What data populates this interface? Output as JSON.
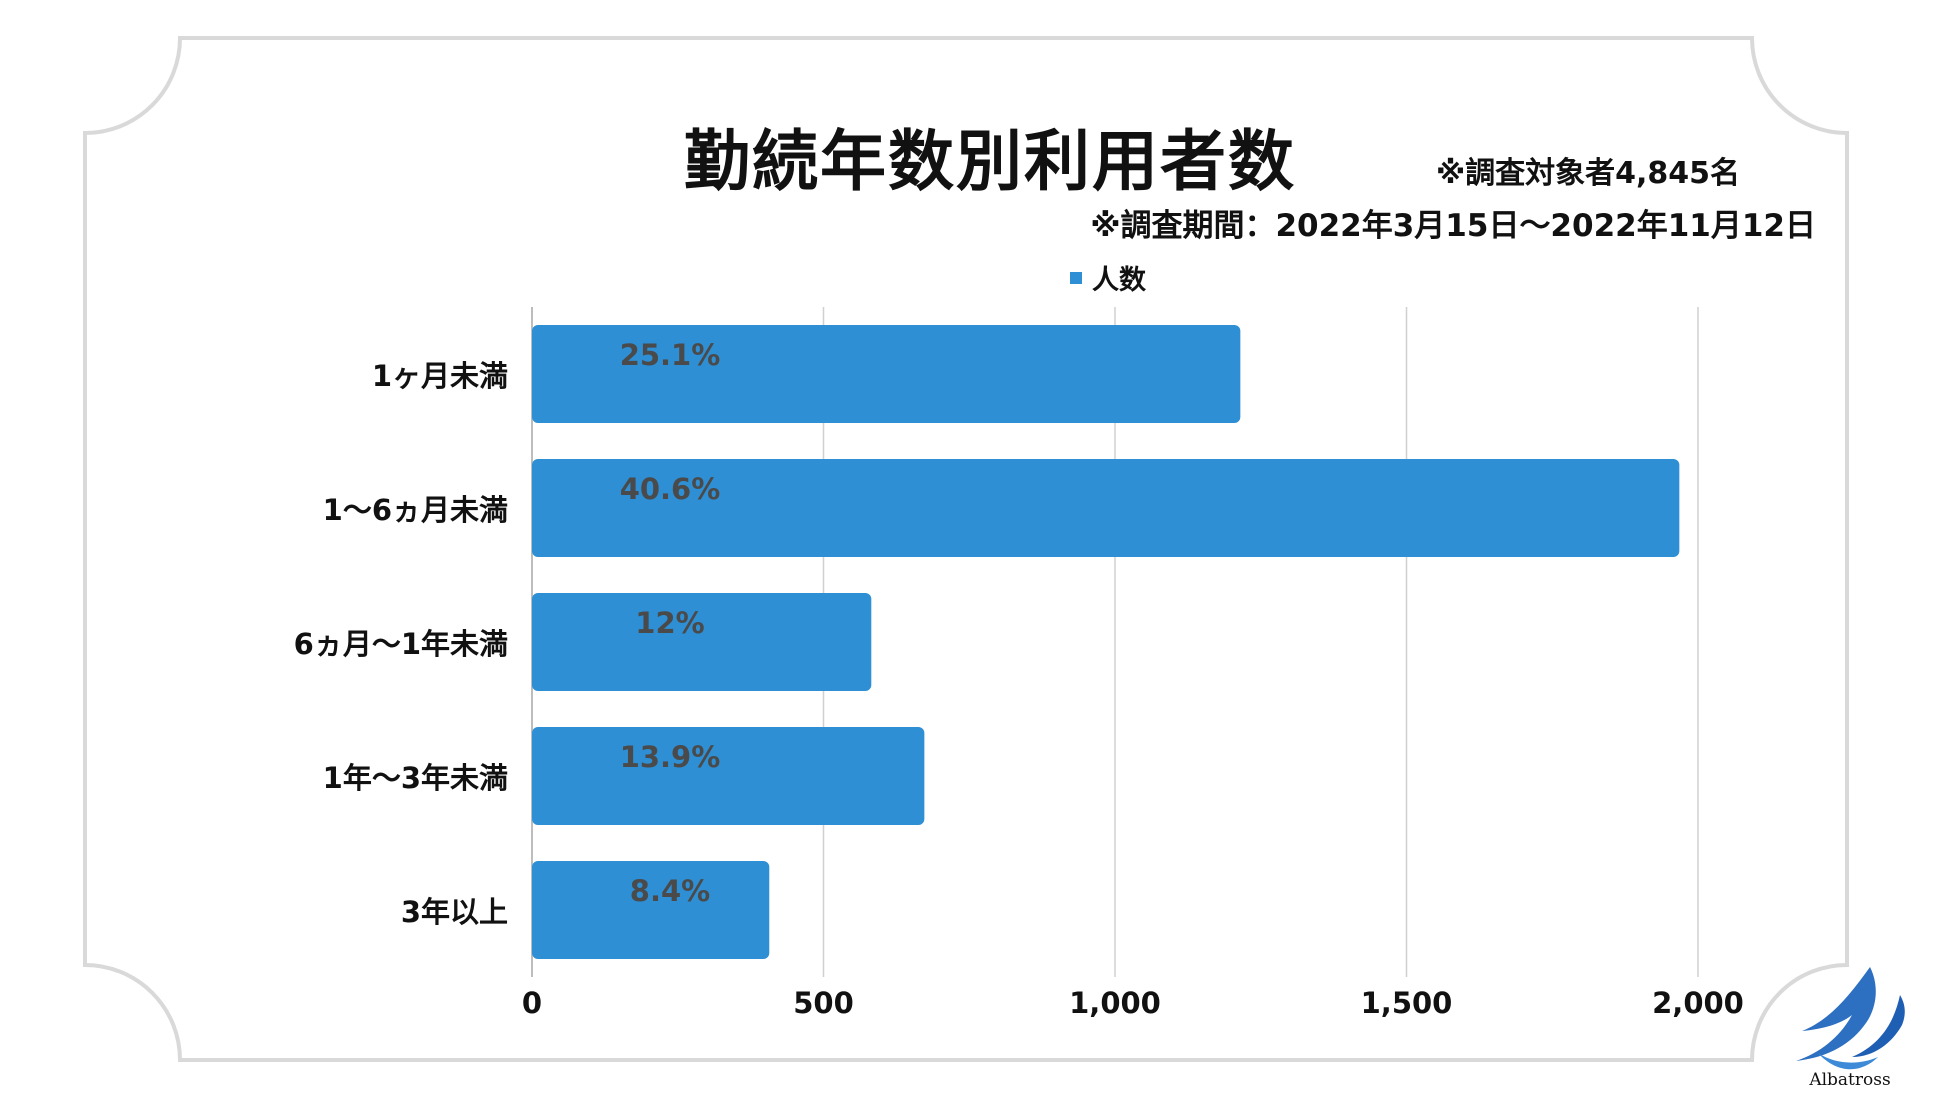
{
  "header": {
    "title": "勤続年数別利用者数",
    "note_sample": "※調査対象者4,845名",
    "note_period": "※調査期間：2022年3月15日〜2022年11月12日"
  },
  "legend": {
    "label": "人数",
    "color": "#2e8fd4"
  },
  "logo": {
    "text": "Albatross",
    "icon": "albatross-bird-icon"
  },
  "chart_data": {
    "type": "bar",
    "orientation": "horizontal",
    "categories": [
      "1ヶ月未満",
      "1〜6ヵ月未満",
      "6ヵ月〜1年未満",
      "1年〜3年未満",
      "3年以上"
    ],
    "series": [
      {
        "name": "人数",
        "values": [
          1215,
          1968,
          582,
          673,
          407
        ],
        "labels": [
          "25.1%",
          "40.6%",
          "12%",
          "13.9%",
          "8.4%"
        ]
      }
    ],
    "xlim": [
      0,
      2000
    ],
    "xticks": [
      0,
      500,
      1000,
      1500,
      2000
    ],
    "xtick_labels": [
      "0",
      "500",
      "1,000",
      "1,500",
      "2,000"
    ],
    "grid": true,
    "legend_position": "top",
    "bar_color": "#2e8fd4",
    "label_color": "#4a4a4a",
    "grid_color": "#d0d0d0"
  }
}
